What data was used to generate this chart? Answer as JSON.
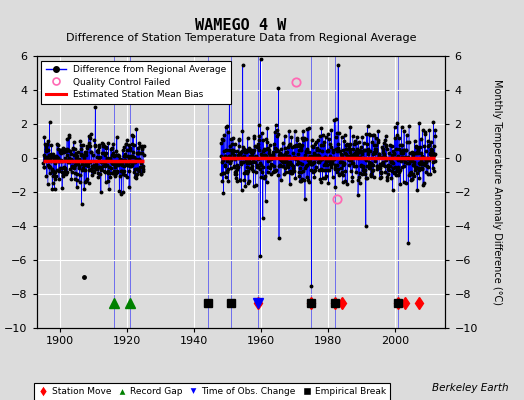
{
  "title": "WAMEGO 4 W",
  "subtitle": "Difference of Station Temperature Data from Regional Average",
  "ylabel": "Monthly Temperature Anomaly Difference (°C)",
  "ylim": [
    -10,
    6
  ],
  "yticks": [
    -10,
    -8,
    -6,
    -4,
    -2,
    0,
    2,
    4,
    6
  ],
  "xlim": [
    1893,
    2015
  ],
  "xticks": [
    1900,
    1920,
    1940,
    1960,
    1980,
    2000
  ],
  "bg_color": "#dcdcdc",
  "grid_color": "white",
  "data_line_color": "blue",
  "data_marker_color": "black",
  "bias_line_color": "red",
  "qc_failed_color": "#ff69b4",
  "segment1_start": 1895,
  "segment1_end": 1925,
  "segment2_start": 1948,
  "segment2_end": 2012,
  "bias1": -0.15,
  "bias2": 0.0,
  "spike1_year": 1910.5,
  "spike1_val": 3.0,
  "spike2_year": 1959.8,
  "spike2_val": 5.8,
  "spike3_year": 1975.0,
  "spike3_val": -7.5,
  "spike4_year": 1983.0,
  "spike4_val": 5.5,
  "qc_years": [
    1970.5,
    1982.5
  ],
  "qc_vals": [
    4.5,
    -2.4
  ],
  "isolated_year": 1907.0,
  "isolated_val": -7.0,
  "station_moves": [
    1959,
    1975,
    1982,
    1984,
    2001,
    2003,
    2007
  ],
  "record_gaps": [
    1916,
    1921
  ],
  "tobs_changes": [
    1959
  ],
  "empirical_breaks": [
    1944,
    1951,
    1975,
    1982,
    2001
  ],
  "vline_years": [
    1916,
    1921,
    1944,
    1951,
    1959,
    1975,
    1982,
    2001
  ],
  "marker_y": -8.5,
  "watermark": "Berkeley Earth"
}
